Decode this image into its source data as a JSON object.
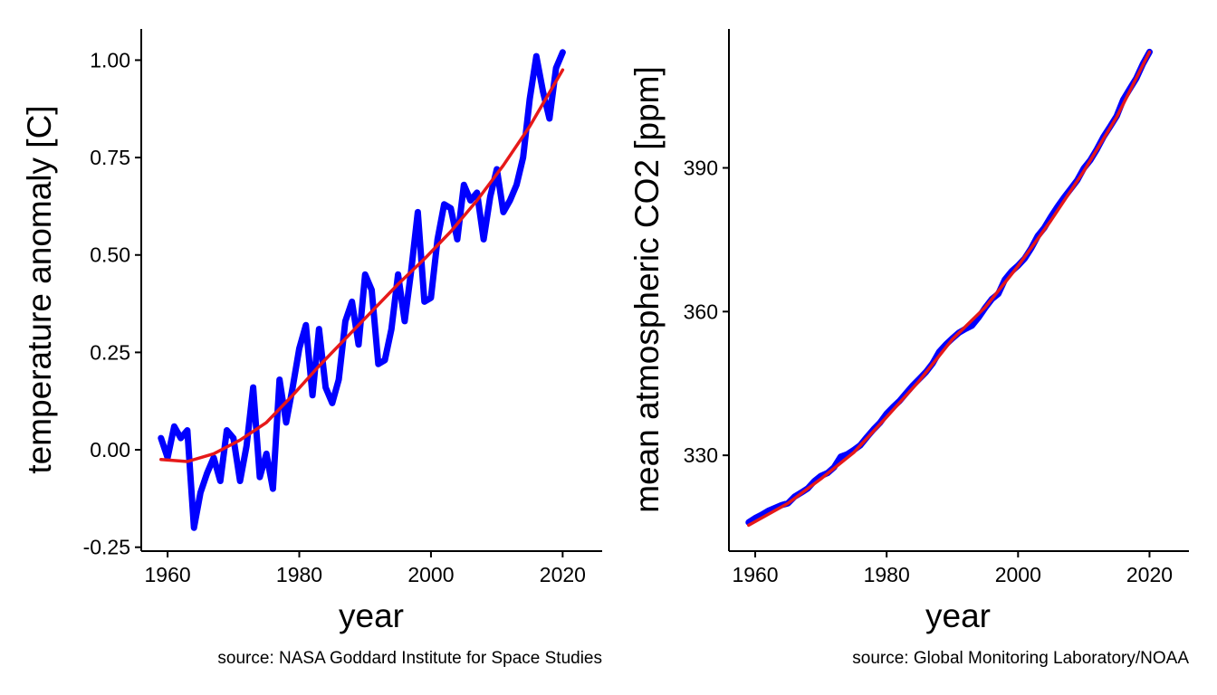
{
  "chart_data": [
    {
      "type": "line",
      "title": "",
      "xlabel": "year",
      "ylabel": "temperature anomaly [C]",
      "caption": "source: NASA Goddard Institute for Space Studies",
      "xlim": [
        1956,
        2026
      ],
      "ylim": [
        -0.26,
        1.08
      ],
      "xticks": [
        1960,
        1980,
        2000,
        2020
      ],
      "yticks": [
        -0.25,
        0.0,
        0.25,
        0.5,
        0.75,
        1.0
      ],
      "ytick_labels": [
        "-0.25",
        "0.00",
        "0.25",
        "0.50",
        "0.75",
        "1.00"
      ],
      "grid": false,
      "legend": "none",
      "x": [
        1959,
        1960,
        1961,
        1962,
        1963,
        1964,
        1965,
        1966,
        1967,
        1968,
        1969,
        1970,
        1971,
        1972,
        1973,
        1974,
        1975,
        1976,
        1977,
        1978,
        1979,
        1980,
        1981,
        1982,
        1983,
        1984,
        1985,
        1986,
        1987,
        1988,
        1989,
        1990,
        1991,
        1992,
        1993,
        1994,
        1995,
        1996,
        1997,
        1998,
        1999,
        2000,
        2001,
        2002,
        2003,
        2004,
        2005,
        2006,
        2007,
        2008,
        2009,
        2010,
        2011,
        2012,
        2013,
        2014,
        2015,
        2016,
        2017,
        2018,
        2019,
        2020
      ],
      "series": [
        {
          "values": [
            0.03,
            -0.02,
            0.06,
            0.03,
            0.05,
            -0.2,
            -0.11,
            -0.06,
            -0.02,
            -0.08,
            0.05,
            0.03,
            -0.08,
            0.01,
            0.16,
            -0.07,
            -0.01,
            -0.1,
            0.18,
            0.07,
            0.16,
            0.26,
            0.32,
            0.14,
            0.31,
            0.16,
            0.12,
            0.18,
            0.33,
            0.38,
            0.27,
            0.45,
            0.41,
            0.22,
            0.23,
            0.31,
            0.45,
            0.33,
            0.46,
            0.61,
            0.38,
            0.39,
            0.54,
            0.63,
            0.62,
            0.54,
            0.68,
            0.64,
            0.66,
            0.54,
            0.65,
            0.72,
            0.61,
            0.64,
            0.68,
            0.75,
            0.9,
            1.01,
            0.92,
            0.85,
            0.98,
            1.02
          ],
          "color": "#0000ff"
        },
        {
          "x": [
            1959,
            1963,
            1967,
            1971,
            1975,
            1979,
            1983,
            1987,
            1991,
            1995,
            1999,
            2003,
            2007,
            2011,
            2015,
            2020
          ],
          "values": [
            -0.025,
            -0.03,
            -0.01,
            0.025,
            0.07,
            0.14,
            0.215,
            0.285,
            0.355,
            0.425,
            0.49,
            0.56,
            0.64,
            0.73,
            0.83,
            0.975
          ],
          "color": "#e61919"
        }
      ]
    },
    {
      "type": "line",
      "title": "",
      "xlabel": "year",
      "ylabel": "mean atmospheric CO2 [ppm]",
      "caption": "source: Global Monitoring Laboratory/NOAA",
      "xlim": [
        1956,
        2026
      ],
      "ylim": [
        310,
        419
      ],
      "xticks": [
        1960,
        1980,
        2000,
        2020
      ],
      "yticks": [
        330,
        360,
        390
      ],
      "ytick_labels": [
        "330",
        "360",
        "390"
      ],
      "grid": false,
      "legend": "none",
      "x": [
        1959,
        1960,
        1961,
        1962,
        1963,
        1964,
        1965,
        1966,
        1967,
        1968,
        1969,
        1970,
        1971,
        1972,
        1973,
        1974,
        1975,
        1976,
        1977,
        1978,
        1979,
        1980,
        1981,
        1982,
        1983,
        1984,
        1985,
        1986,
        1987,
        1988,
        1989,
        1990,
        1991,
        1992,
        1993,
        1994,
        1995,
        1996,
        1997,
        1998,
        1999,
        2000,
        2001,
        2002,
        2003,
        2004,
        2005,
        2006,
        2007,
        2008,
        2009,
        2010,
        2011,
        2012,
        2013,
        2014,
        2015,
        2016,
        2017,
        2018,
        2019,
        2020
      ],
      "series": [
        {
          "values": [
            316.0,
            316.9,
            317.6,
            318.4,
            319.0,
            319.6,
            320.0,
            321.4,
            322.2,
            323.1,
            324.6,
            325.7,
            326.3,
            327.5,
            329.7,
            330.2,
            331.1,
            332.1,
            333.8,
            335.4,
            336.8,
            338.7,
            340.1,
            341.4,
            343.0,
            344.6,
            346.0,
            347.4,
            349.2,
            351.6,
            353.1,
            354.4,
            355.6,
            356.4,
            357.1,
            358.8,
            360.8,
            362.6,
            363.7,
            366.7,
            368.4,
            369.6,
            371.1,
            373.2,
            375.8,
            377.5,
            379.8,
            381.9,
            383.8,
            385.6,
            387.4,
            389.9,
            391.6,
            393.9,
            396.5,
            398.6,
            400.8,
            404.2,
            406.5,
            408.7,
            411.7,
            414.2
          ],
          "color": "#0000ff"
        },
        {
          "x": [
            1959,
            1965,
            1970,
            1975,
            1980,
            1985,
            1990,
            1995,
            2000,
            2005,
            2010,
            2015,
            2020
          ],
          "values": [
            315.4,
            320.0,
            325.1,
            330.6,
            338.0,
            345.6,
            354.2,
            360.9,
            369.5,
            379.0,
            389.3,
            400.6,
            414.2
          ],
          "color": "#e61919"
        }
      ]
    }
  ]
}
